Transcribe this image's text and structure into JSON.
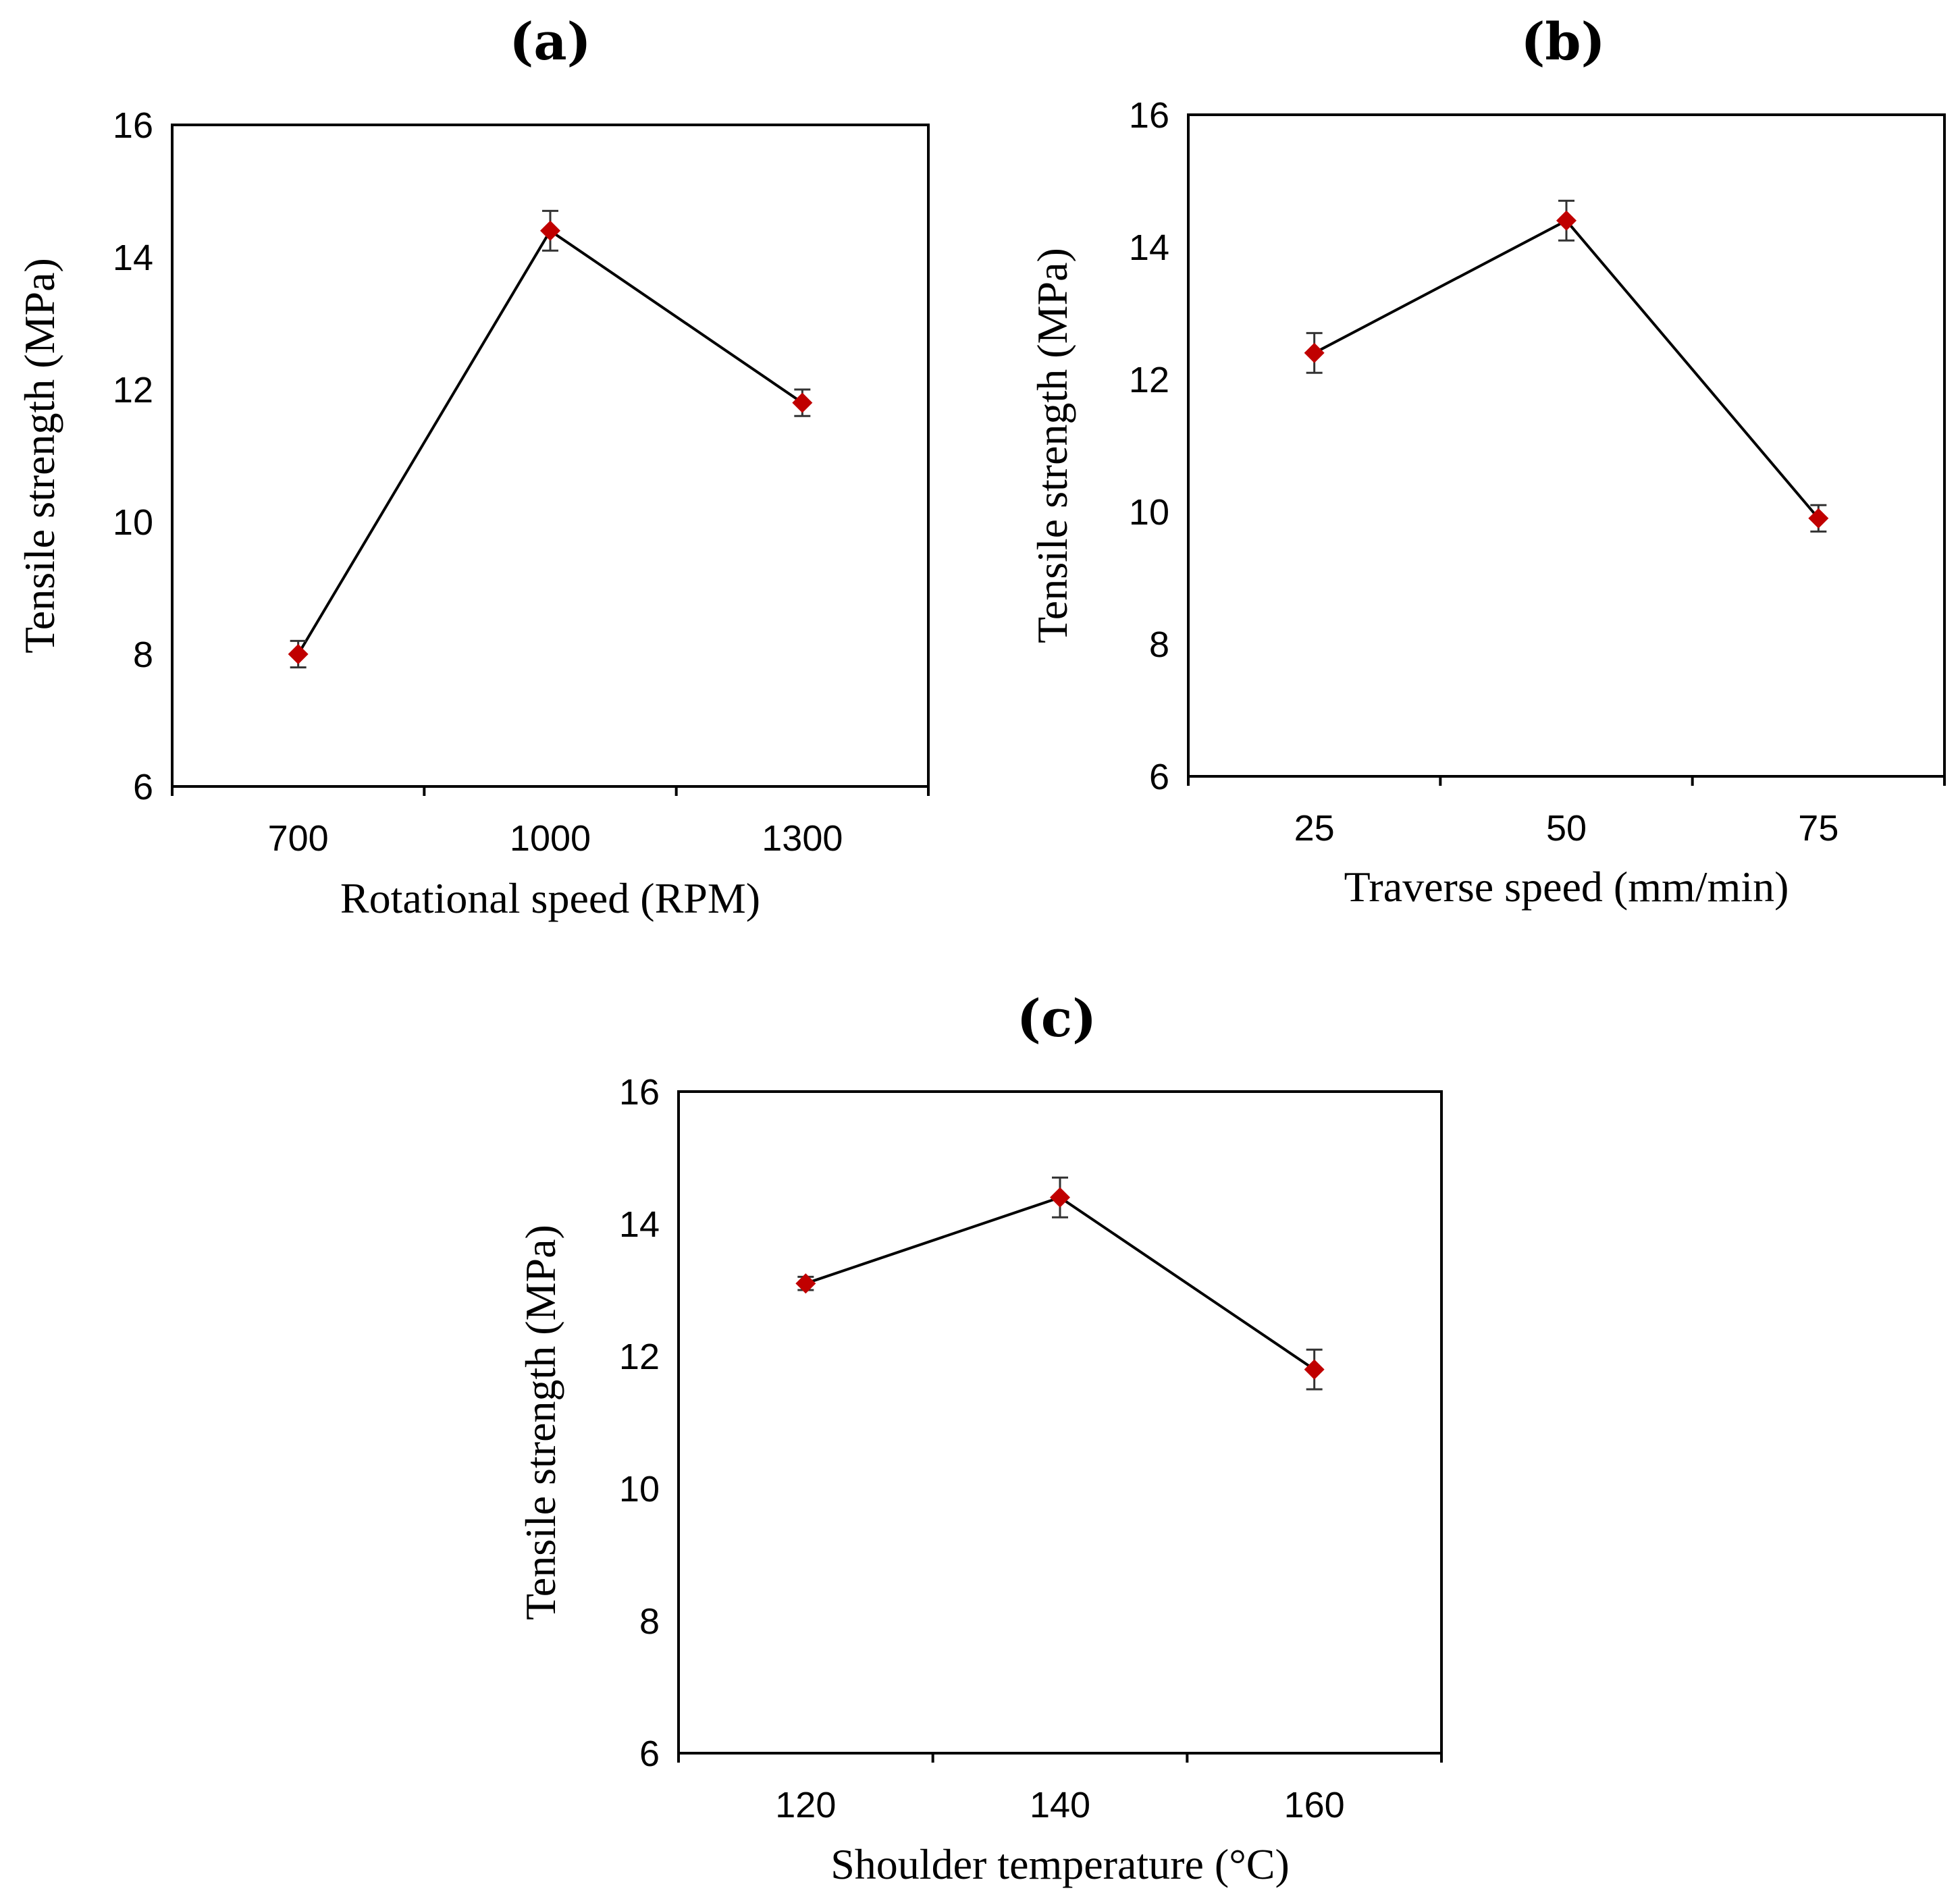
{
  "chart_data": [
    {
      "type": "line",
      "title": "(a)",
      "xlabel": "Rotational speed (RPM)",
      "ylabel": "Tensile strength (MPa)",
      "categories": [
        "700",
        "1000",
        "1300"
      ],
      "values": [
        8.0,
        14.4,
        11.8
      ],
      "errors": [
        0.2,
        0.3,
        0.2
      ],
      "ylim": [
        6,
        16
      ],
      "yticks": [
        "6",
        "8",
        "10",
        "12",
        "14",
        "16"
      ],
      "marker_color": "#c00000",
      "line_color": "#000000"
    },
    {
      "type": "line",
      "title": "(b)",
      "xlabel": "Traverse speed (mm/min)",
      "ylabel": "Tensile strength (MPa)",
      "categories": [
        "25",
        "50",
        "75"
      ],
      "values": [
        12.4,
        14.4,
        9.9
      ],
      "errors": [
        0.3,
        0.3,
        0.2
      ],
      "ylim": [
        6,
        16
      ],
      "yticks": [
        "6",
        "8",
        "10",
        "12",
        "14",
        "16"
      ],
      "marker_color": "#c00000",
      "line_color": "#000000"
    },
    {
      "type": "line",
      "title": "(c)",
      "xlabel": "Shoulder temperature (°C)",
      "ylabel": "Tensile strength (MPa)",
      "categories": [
        "120",
        "140",
        "160"
      ],
      "values": [
        13.1,
        14.4,
        11.8
      ],
      "errors": [
        0.1,
        0.3,
        0.3
      ],
      "ylim": [
        6,
        16
      ],
      "yticks": [
        "6",
        "8",
        "10",
        "12",
        "14",
        "16"
      ],
      "marker_color": "#c00000",
      "line_color": "#000000"
    }
  ]
}
